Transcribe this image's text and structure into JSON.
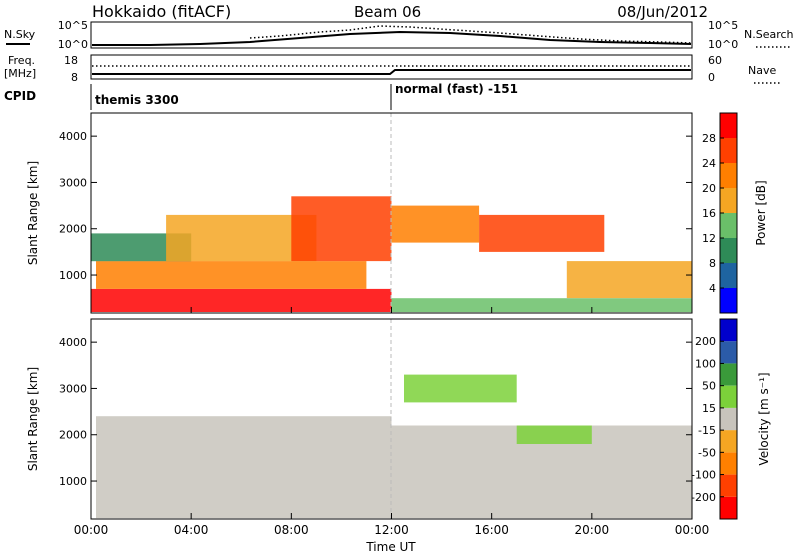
{
  "header": {
    "title": "Hokkaido (fitACF)",
    "beam": "Beam 06",
    "date": "08/Jun/2012"
  },
  "top_panels": {
    "nsky_label": "N.Sky",
    "nsearch_label": "N.Search",
    "n_ticks_left": [
      "10^5",
      "10^0"
    ],
    "n_ticks_right": [
      "10^5",
      "10^0"
    ],
    "freq_label": "Freq.",
    "freq_unit": "[MHz]",
    "freq_ticks": [
      "18",
      "8"
    ],
    "nave_label": "Nave",
    "nave_ticks": [
      "60",
      "0"
    ],
    "cpid_label": "CPID",
    "cpid_segments": [
      {
        "label": "themis 3300",
        "start_ut": "00:00"
      },
      {
        "label": "normal (fast) -151",
        "start_ut": "12:00"
      }
    ]
  },
  "chart_data": [
    {
      "type": "heatmap",
      "quantity": "Power",
      "ylabel": "Slant Range [km]",
      "yticks": [
        "4000",
        "3000",
        "2000",
        "1000"
      ],
      "ylim": [
        180,
        4500
      ],
      "colorbar_label": "Power [dB]",
      "colorbar_ticks": [
        "28",
        "24",
        "20",
        "16",
        "12",
        "8",
        "4"
      ],
      "colorscale": [
        "#0000ff",
        "#1e64a0",
        "#2e8b57",
        "#6abf69",
        "#f5a623",
        "#ff7f00",
        "#ff4000",
        "#ff0000"
      ],
      "bands": [
        {
          "t0": 0.0,
          "t1": 12.0,
          "r0": 200,
          "r1": 700,
          "level": 7
        },
        {
          "t0": 0.2,
          "t1": 11.0,
          "r0": 700,
          "r1": 1300,
          "level": 5
        },
        {
          "t0": 0.0,
          "t1": 4.0,
          "r0": 1300,
          "r1": 1900,
          "level": 2
        },
        {
          "t0": 3.0,
          "t1": 9.0,
          "r0": 1300,
          "r1": 2300,
          "level": 4
        },
        {
          "t0": 8.0,
          "t1": 12.0,
          "r0": 1300,
          "r1": 2700,
          "level": 6
        },
        {
          "t0": 12.0,
          "t1": 15.5,
          "r0": 1700,
          "r1": 2500,
          "level": 5
        },
        {
          "t0": 15.5,
          "t1": 20.5,
          "r0": 1500,
          "r1": 2300,
          "level": 6
        },
        {
          "t0": 12.0,
          "t1": 24.0,
          "r0": 200,
          "r1": 500,
          "level": 3
        },
        {
          "t0": 19.0,
          "t1": 24.0,
          "r0": 500,
          "r1": 1300,
          "level": 4
        }
      ]
    },
    {
      "type": "heatmap",
      "quantity": "Velocity",
      "ylabel": "Slant Range [km]",
      "yticks": [
        "4000",
        "3000",
        "2000",
        "1000"
      ],
      "ylim": [
        180,
        4500
      ],
      "colorbar_label": "Velocity [m s⁻¹]",
      "colorbar_ticks": [
        "200",
        "100",
        "50",
        "15",
        "-15",
        "-50",
        "-100",
        "-200"
      ],
      "colorscale": [
        "#ff0000",
        "#ff4000",
        "#ff8000",
        "#f5a623",
        "#c8c4bc",
        "#7cd13a",
        "#3a9a3a",
        "#2b5ba8",
        "#0000cc"
      ],
      "bands": [
        {
          "t0": 0.2,
          "t1": 12.0,
          "r0": 200,
          "r1": 2400,
          "level": 4
        },
        {
          "t0": 12.0,
          "t1": 24.0,
          "r0": 200,
          "r1": 2200,
          "level": 4
        },
        {
          "t0": 17.0,
          "t1": 20.0,
          "r0": 1800,
          "r1": 2200,
          "level": 5
        },
        {
          "t0": 12.5,
          "t1": 17.0,
          "r0": 2700,
          "r1": 3300,
          "level": 5
        }
      ]
    }
  ],
  "x_axis": {
    "ticks": [
      "00:00",
      "04:00",
      "08:00",
      "12:00",
      "16:00",
      "20:00",
      "00:00"
    ],
    "label": "Time UT"
  }
}
